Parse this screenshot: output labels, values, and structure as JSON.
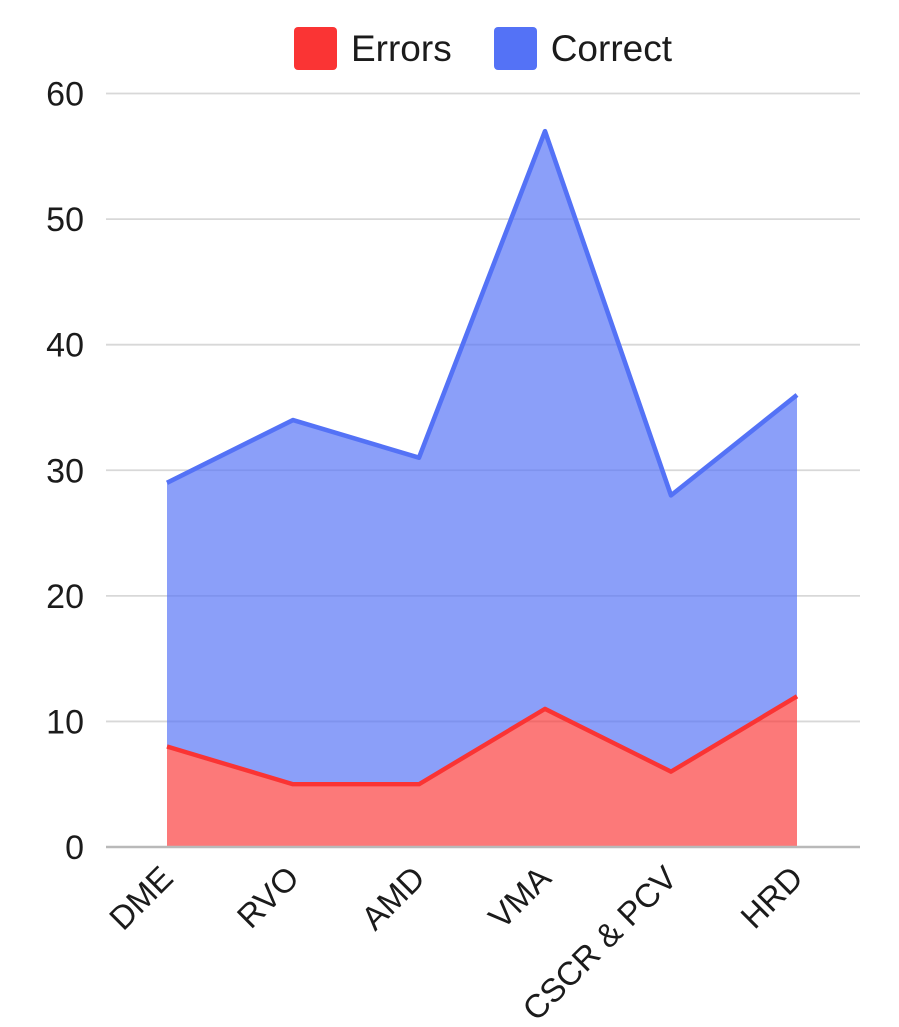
{
  "chart_data": {
    "type": "area",
    "stacked": true,
    "title": "",
    "xlabel": "",
    "ylabel": "",
    "categories": [
      "DME",
      "RVO",
      "AMD",
      "VMA",
      "CSCR & PCV",
      "HRD"
    ],
    "series": [
      {
        "name": "Errors",
        "values": [
          8,
          5,
          5,
          11,
          6,
          12
        ],
        "color": "#fa3434",
        "fill_opacity": 0.66
      },
      {
        "name": "Correct",
        "values": [
          21,
          29,
          26,
          46,
          22,
          24
        ],
        "color": "#5472f6",
        "fill_opacity": 0.68
      }
    ],
    "stacked_totals": [
      29,
      34,
      31,
      57,
      28,
      36
    ],
    "yticks": [
      0,
      10,
      20,
      30,
      40,
      50,
      60
    ],
    "ylim": [
      0,
      60
    ],
    "grid": true,
    "legend_position": "top",
    "gridline_color": "#d8d8d8",
    "axis_line_color": "#b9b9b9",
    "text_color": "#1b1b1b"
  }
}
